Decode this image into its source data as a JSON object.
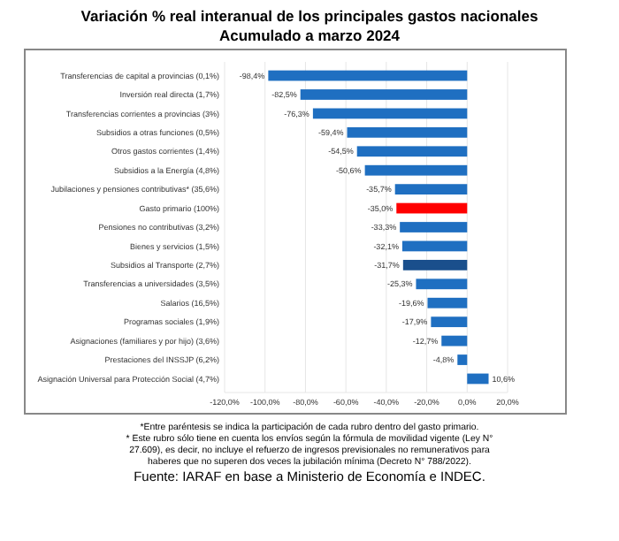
{
  "chart_data": {
    "type": "bar",
    "orientation": "horizontal",
    "title": "Variación % real interanual de los principales gastos nacionales",
    "subtitle": "Acumulado a marzo 2024",
    "categories": [
      "Transferencias de capital a provincias (0,1%)",
      "Inversión real directa (1,7%)",
      "Transferencias corrientes a provincias (3%)",
      "Subsidios a otras funciones (0,5%)",
      "Otros gastos corrientes (1,4%)",
      "Subsidios a la Energía (4,8%)",
      "Jubilaciones y pensiones contributivas* (35,6%)",
      "Gasto primario (100%)",
      "Pensiones no contributivas (3,2%)",
      "Bienes y servicios (1,5%)",
      "Subsidios al Transporte (2,7%)",
      "Transferencias a universidades (3,5%)",
      "Salarios (16,5%)",
      "Programas sociales (1,9%)",
      "Asignaciones (familiares y por hijo) (3,6%)",
      "Prestaciones del INSSJP (6,2%)",
      "Asignación Universal para Protección Social (4,7%)"
    ],
    "values": [
      -98.4,
      -82.5,
      -76.3,
      -59.4,
      -54.5,
      -50.6,
      -35.7,
      -35.0,
      -33.3,
      -32.1,
      -31.7,
      -25.3,
      -19.6,
      -17.9,
      -12.7,
      -4.8,
      10.6
    ],
    "value_labels": [
      "-98,4%",
      "-82,5%",
      "-76,3%",
      "-59,4%",
      "-54,5%",
      "-50,6%",
      "-35,7%",
      "-35,0%",
      "-33,3%",
      "-32,1%",
      "-31,7%",
      "-25,3%",
      "-19,6%",
      "-17,9%",
      "-12,7%",
      "-4,8%",
      "10,6%"
    ],
    "colors": [
      "#1f6fc1",
      "#1f6fc1",
      "#1f6fc1",
      "#1f6fc1",
      "#1f6fc1",
      "#1f6fc1",
      "#1f6fc1",
      "#ff0000",
      "#1f6fc1",
      "#1f6fc1",
      "#1a4f8c",
      "#1f6fc1",
      "#1f6fc1",
      "#1f6fc1",
      "#1f6fc1",
      "#1f6fc1",
      "#1f6fc1"
    ],
    "xlim": [
      -120,
      20
    ],
    "xticks": [
      {
        "value": -120,
        "label": "-120,0%"
      },
      {
        "value": -100,
        "label": "-100,0%"
      },
      {
        "value": -80,
        "label": "-80,0%"
      },
      {
        "value": -60,
        "label": "-60,0%"
      },
      {
        "value": -40,
        "label": "-40,0%"
      },
      {
        "value": -20,
        "label": "-20,0%"
      },
      {
        "value": 0,
        "label": "0,0%"
      },
      {
        "value": 20,
        "label": "20,0%"
      }
    ],
    "grid": "x",
    "annotations": [
      "*Entre paréntesis se indica la participación de cada rubro dentro del gasto primario.",
      "* Este rubro sólo tiene en cuenta los envíos según la fórmula de movilidad vigente (Ley N° 27.609), es decir, no incluye el refuerzo de ingresos previsionales no remunerativos para haberes que no superen dos veces la jubilación mínima (Decreto N° 788/2022).",
      "Fuente: IARAF en base a Ministerio de Economía e INDEC."
    ]
  }
}
